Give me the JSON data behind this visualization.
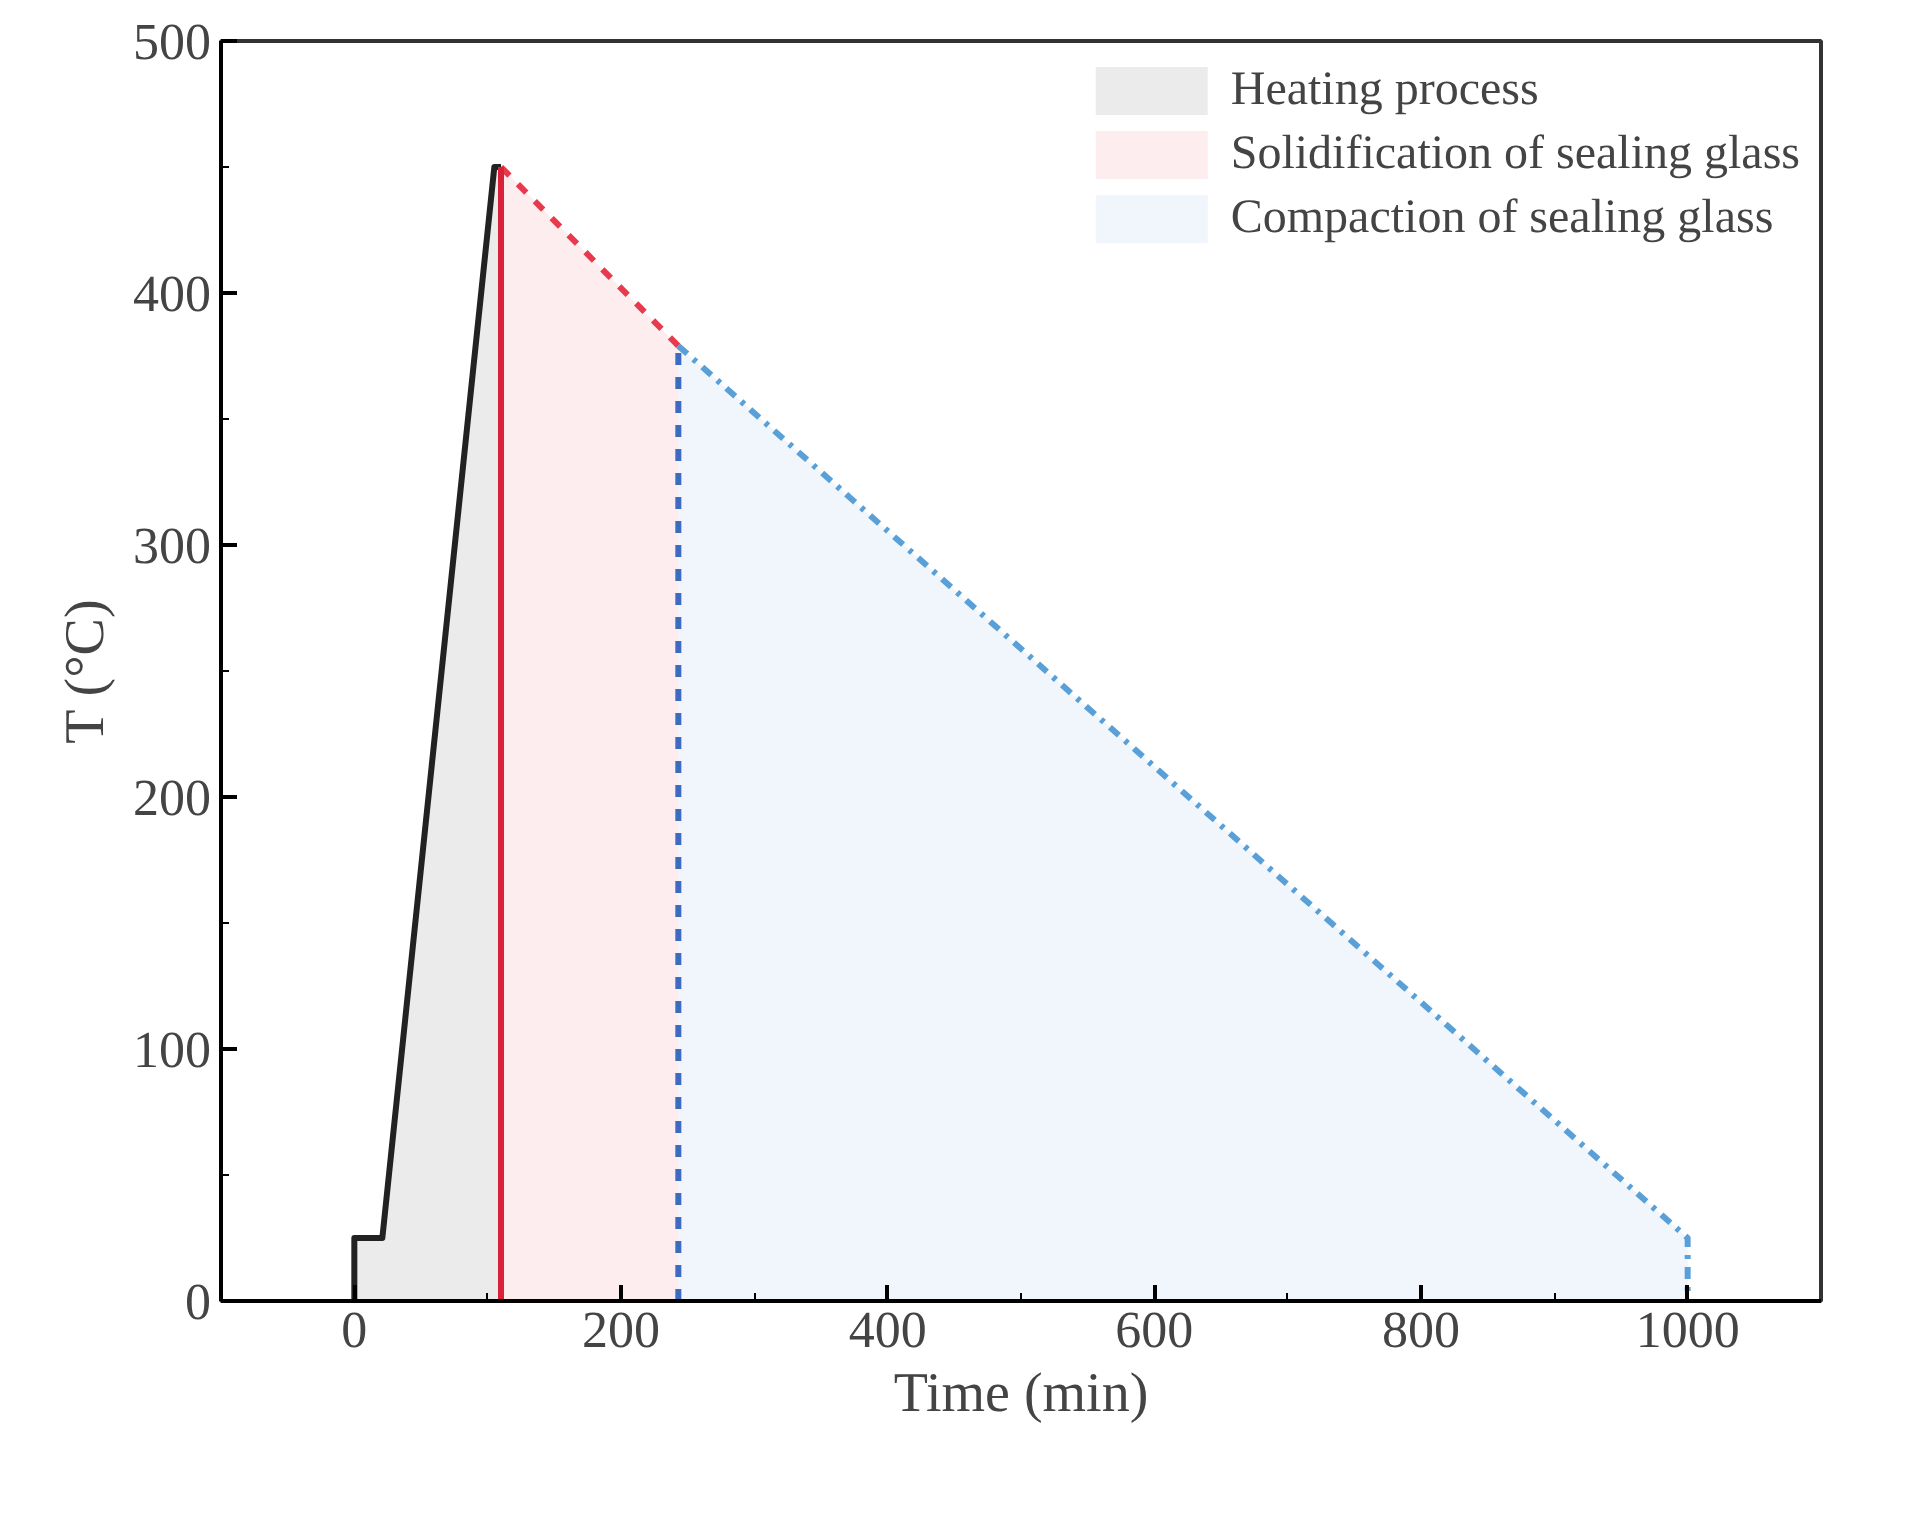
{
  "chart_data": {
    "type": "line",
    "xlabel": "Time (min)",
    "ylabel": "T (°C)",
    "xlim": [
      -100,
      1100
    ],
    "xticks": [
      0,
      200,
      400,
      600,
      800,
      1000
    ],
    "ylim": [
      0,
      500
    ],
    "yticks": [
      0,
      100,
      200,
      300,
      400,
      500
    ],
    "grid": false,
    "legend": "top right",
    "series": [
      {
        "type": "area",
        "name": "Heating process",
        "color": "#222222",
        "line_style": "solid",
        "x": [
          0,
          0,
          21,
          105,
          110
        ],
        "values": [
          0,
          25,
          25,
          450,
          450
        ]
      },
      {
        "type": "area",
        "name": "Solidification of sealing glass",
        "color": "#e8394d",
        "line_style": "dashed",
        "x": [
          110,
          243
        ],
        "values": [
          450,
          379
        ]
      },
      {
        "type": "area",
        "name": "Compaction of sealing glass",
        "color": "#5aa0d8",
        "line_style": "dashdot",
        "x": [
          243,
          1000,
          1000
        ],
        "values": [
          379,
          25,
          0
        ]
      },
      {
        "color": "#d9213a",
        "line_style": "solid",
        "x": [
          110,
          110
        ],
        "values": [
          0,
          450
        ]
      },
      {
        "color": "#3d6bc2",
        "line_style": "dashed",
        "x": [
          243,
          243
        ],
        "values": [
          0,
          379
        ]
      }
    ]
  }
}
